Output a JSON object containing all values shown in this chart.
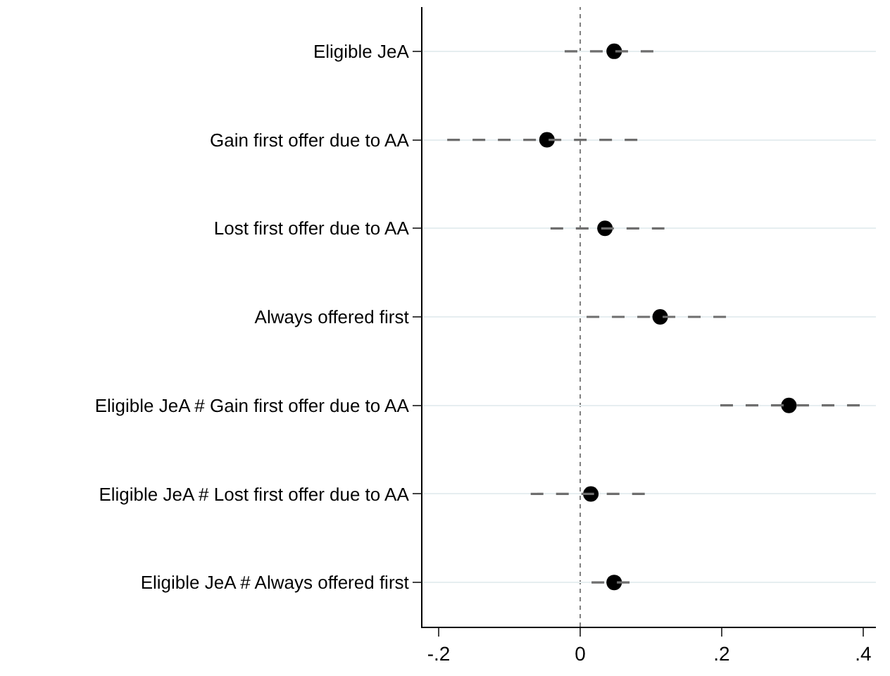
{
  "chart_data": {
    "type": "scatter",
    "orientation": "horizontal",
    "categories": [
      "Eligible JeA",
      "Gain first offer due to AA",
      "Lost first offer due to AA",
      "Always offered first",
      "Eligible JeA # Gain first offer due to AA",
      "Eligible JeA # Lost first offer due to AA",
      "Eligible JeA # Always offered first"
    ],
    "series": [
      {
        "color": "#000000",
        "values": [
          0.048,
          -0.047,
          0.035,
          0.113,
          0.295,
          0.015,
          0.048
        ],
        "errors": [
          [
            -0.022,
            0.119
          ],
          [
            -0.188,
            0.094
          ],
          [
            -0.042,
            0.119
          ],
          [
            0.009,
            0.215
          ],
          [
            0.198,
            0.398
          ],
          [
            -0.07,
            0.102
          ],
          [
            0.016,
            0.084
          ]
        ]
      }
    ],
    "xlim": [
      -0.223,
      0.418
    ],
    "xticks": [
      {
        "value": -0.2,
        "label": "-.2"
      },
      0,
      {
        "value": 0.2,
        "label": ".2"
      },
      {
        "value": 0.4,
        "label": ".4"
      }
    ],
    "ref_lines": [
      {
        "axis": "x",
        "value": 0,
        "color": "#7f7f7f",
        "line_style": "dotted"
      }
    ],
    "grid": "y",
    "marker": "circle",
    "line_style": "dashed"
  }
}
